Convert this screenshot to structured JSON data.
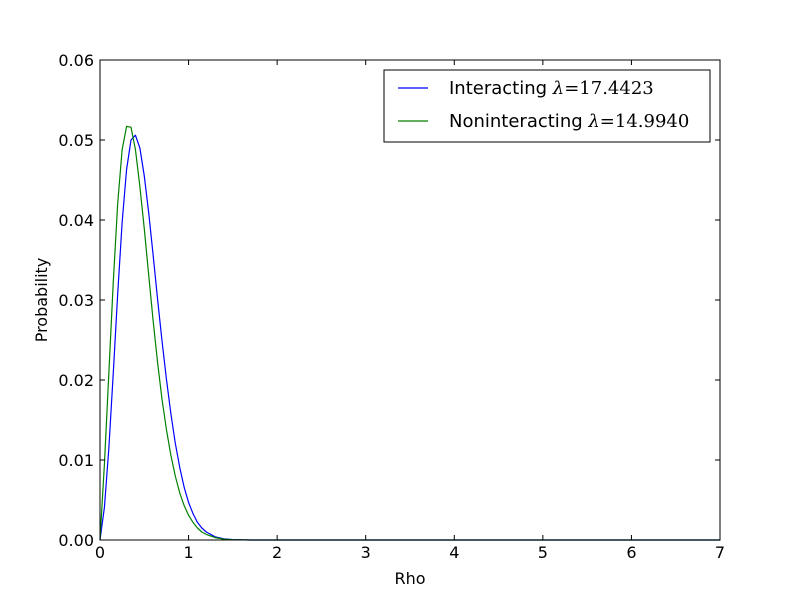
{
  "chart_data": {
    "type": "line",
    "title": "",
    "xlabel": "Rho",
    "ylabel": "Probability",
    "xlim": [
      0,
      7
    ],
    "ylim": [
      0,
      0.06
    ],
    "xticks": [
      0,
      1,
      2,
      3,
      4,
      5,
      6,
      7
    ],
    "xtick_labels": [
      "0",
      "1",
      "2",
      "3",
      "4",
      "5",
      "6",
      "7"
    ],
    "yticks": [
      0,
      0.01,
      0.02,
      0.03,
      0.04,
      0.05,
      0.06
    ],
    "ytick_labels": [
      "0.00",
      "0.01",
      "0.02",
      "0.03",
      "0.04",
      "0.05",
      "0.06"
    ],
    "grid": false,
    "legend": {
      "placement": "top-right",
      "entries": [
        {
          "label": "Interacting",
          "math": "λ",
          "value": "=17.4423",
          "color": "#0000ff"
        },
        {
          "label": "Noninteracting",
          "math": "λ",
          "value": "=14.9940",
          "color": "#008000"
        }
      ]
    },
    "series": [
      {
        "name": "Interacting",
        "color": "#0000ff",
        "x": [
          0.0,
          0.05,
          0.1,
          0.15,
          0.2,
          0.25,
          0.3,
          0.35,
          0.4,
          0.45,
          0.5,
          0.55,
          0.6,
          0.65,
          0.7,
          0.75,
          0.8,
          0.85,
          0.9,
          0.95,
          1.0,
          1.05,
          1.1,
          1.15,
          1.2,
          1.3,
          1.4,
          1.5,
          1.7,
          2.0,
          3.0,
          4.0,
          5.0,
          6.0,
          7.0
        ],
        "y": [
          0.0,
          0.0041,
          0.0115,
          0.0209,
          0.0308,
          0.0397,
          0.0463,
          0.05,
          0.0506,
          0.049,
          0.0455,
          0.0409,
          0.0356,
          0.0301,
          0.0249,
          0.0201,
          0.0158,
          0.0121,
          0.0091,
          0.0066,
          0.0047,
          0.0033,
          0.0022,
          0.0015,
          0.001,
          0.0004,
          0.00015,
          5e-05,
          0.0,
          0.0,
          0.0,
          0.0,
          0.0,
          0.0,
          0.0
        ]
      },
      {
        "name": "Noninteracting",
        "color": "#008000",
        "x": [
          0.0,
          0.05,
          0.1,
          0.15,
          0.2,
          0.25,
          0.3,
          0.35,
          0.4,
          0.45,
          0.5,
          0.55,
          0.6,
          0.65,
          0.7,
          0.75,
          0.8,
          0.85,
          0.9,
          0.95,
          1.0,
          1.05,
          1.1,
          1.15,
          1.2,
          1.3,
          1.4,
          1.5,
          1.7,
          2.0,
          3.0,
          4.0,
          5.0,
          6.0,
          7.0
        ],
        "y": [
          0.0,
          0.0095,
          0.0209,
          0.0323,
          0.0421,
          0.0488,
          0.0517,
          0.0516,
          0.0488,
          0.0442,
          0.0389,
          0.0331,
          0.0274,
          0.0222,
          0.0176,
          0.0138,
          0.0106,
          0.008,
          0.0059,
          0.0043,
          0.0031,
          0.0022,
          0.0015,
          0.001,
          0.0007,
          0.0003,
          0.0001,
          4e-05,
          0.0,
          0.0,
          0.0,
          0.0,
          0.0,
          0.0,
          0.0
        ]
      }
    ]
  }
}
